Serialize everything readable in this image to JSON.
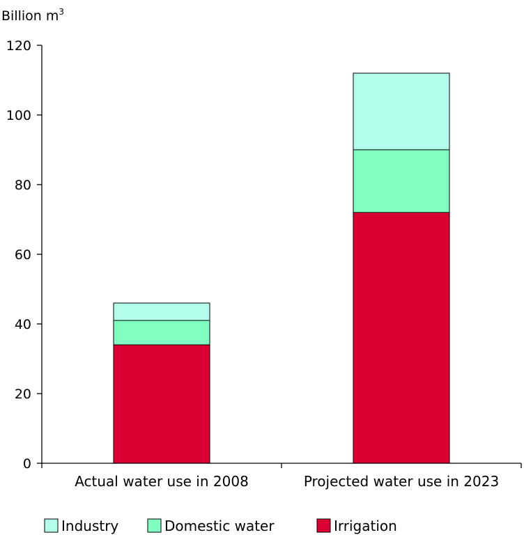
{
  "chart_data": {
    "type": "bar",
    "stacked": true,
    "ylabel": "Billion m",
    "ylabel_superscript": "3",
    "ylim": [
      0,
      120
    ],
    "yticks": [
      0,
      20,
      40,
      60,
      80,
      100,
      120
    ],
    "categories": [
      "Actual water use in 2008",
      "Projected water use in 2023"
    ],
    "series": [
      {
        "name": "Irrigation",
        "values": [
          34,
          72
        ],
        "color": "#dc0032"
      },
      {
        "name": "Domestic water",
        "values": [
          7,
          18
        ],
        "color": "#80ffc0"
      },
      {
        "name": "Industry",
        "values": [
          5,
          22
        ],
        "color": "#b3ffec"
      }
    ],
    "legend": {
      "placement": "bottom",
      "order": [
        "Industry",
        "Domestic water",
        "Irrigation"
      ]
    }
  }
}
